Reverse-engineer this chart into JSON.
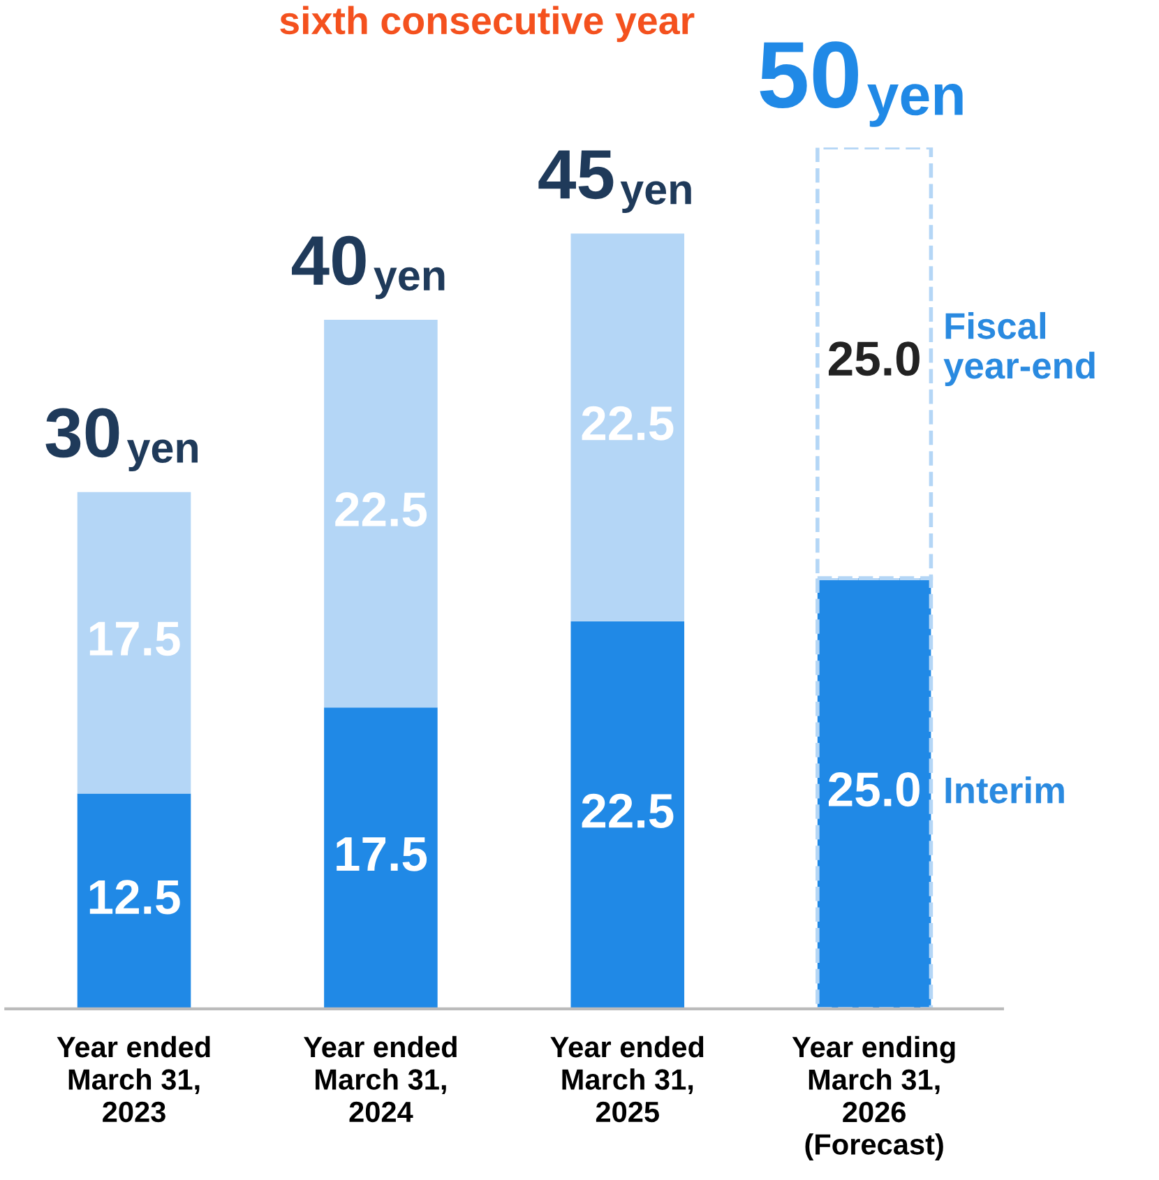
{
  "chart_data": {
    "type": "bar",
    "stacked": true,
    "title": "sixth consecutive year",
    "categories": [
      "Year ended\nMarch 31,\n2023",
      "Year ended\nMarch 31,\n2024",
      "Year ended\nMarch 31,\n2025",
      "Year ending\nMarch 31,\n2026\n(Forecast)"
    ],
    "series": [
      {
        "name": "Interim",
        "color": "#2089e6",
        "colors": [
          "#2089e6",
          "#2089e6",
          "#2089e6",
          "#2089e6"
        ],
        "line_style": [
          "solid",
          "solid",
          "solid",
          "dashed"
        ],
        "values": [
          12.5,
          17.5,
          22.5,
          25.0
        ],
        "value_labels": [
          "12.5",
          "17.5",
          "22.5",
          "25.0"
        ]
      },
      {
        "name": "Fiscal\nyear-end",
        "color": "#b4d6f6",
        "colors": [
          "#b4d6f6",
          "#b4d6f6",
          "#b4d6f6",
          "#ffffff"
        ],
        "line_style": [
          "solid",
          "solid",
          "solid",
          "dashed"
        ],
        "values": [
          17.5,
          22.5,
          22.5,
          25.0
        ],
        "value_labels": [
          "17.5",
          "22.5",
          "22.5",
          "25.0"
        ]
      }
    ],
    "totals": [
      "30 yen",
      "40 yen",
      "45 yen",
      "50 yen"
    ],
    "grid": false,
    "legend": false
  }
}
